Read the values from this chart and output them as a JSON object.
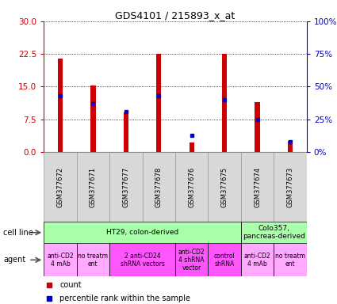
{
  "title": "GDS4101 / 215893_x_at",
  "samples": [
    "GSM377672",
    "GSM377671",
    "GSM377677",
    "GSM377678",
    "GSM377676",
    "GSM377675",
    "GSM377674",
    "GSM377673"
  ],
  "counts": [
    21.5,
    15.3,
    9.0,
    22.5,
    2.2,
    22.5,
    11.5,
    2.5
  ],
  "percentile_ranks": [
    43,
    37,
    31,
    43,
    13,
    40,
    25,
    8
  ],
  "left_ylim": [
    0,
    30
  ],
  "left_yticks": [
    0,
    7.5,
    15,
    22.5,
    30
  ],
  "right_ylim": [
    0,
    100
  ],
  "right_yticks": [
    0,
    25,
    50,
    75,
    100
  ],
  "left_ycolor": "#cc0000",
  "right_ycolor": "#0000cc",
  "bar_color": "#cc0000",
  "dot_color": "#0000cc",
  "cell_line_groups": [
    {
      "label": "HT29, colon-derived",
      "start": 0,
      "end": 6,
      "color": "#aaffaa"
    },
    {
      "label": "Colo357,\npancreas-derived",
      "start": 6,
      "end": 8,
      "color": "#aaffaa"
    }
  ],
  "agent_groups": [
    {
      "label": "anti-CD2\n4 mAb",
      "start": 0,
      "end": 1,
      "color": "#ffaaff"
    },
    {
      "label": "no treatm\nent",
      "start": 1,
      "end": 2,
      "color": "#ffaaff"
    },
    {
      "label": "2 anti-CD24\nshRNA vectors",
      "start": 2,
      "end": 4,
      "color": "#ff55ff"
    },
    {
      "label": "anti-CD2\n4 shRNA\nvector",
      "start": 4,
      "end": 5,
      "color": "#ff55ff"
    },
    {
      "label": "control\nshRNA",
      "start": 5,
      "end": 6,
      "color": "#ff55ff"
    },
    {
      "label": "anti-CD2\n4 mAb",
      "start": 6,
      "end": 7,
      "color": "#ffaaff"
    },
    {
      "label": "no treatm\nent",
      "start": 7,
      "end": 8,
      "color": "#ffaaff"
    }
  ],
  "legend_items": [
    {
      "label": "count",
      "color": "#cc0000"
    },
    {
      "label": "percentile rank within the sample",
      "color": "#0000cc"
    }
  ],
  "bar_width": 0.15,
  "figsize": [
    4.25,
    3.84
  ],
  "dpi": 100
}
